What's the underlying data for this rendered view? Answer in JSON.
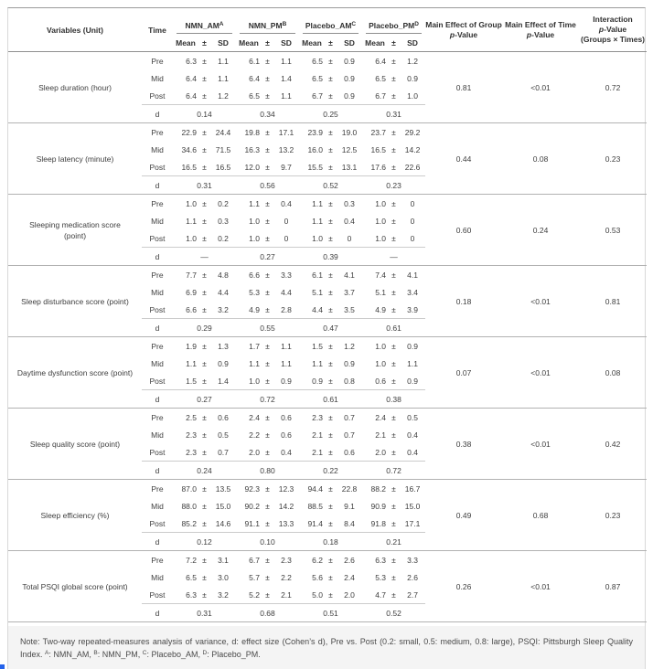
{
  "table": {
    "pm_sign": "±",
    "d_label": "d",
    "header": {
      "variables": "Variables (Unit)",
      "time": "Time",
      "groups": [
        {
          "label": "NMN_AM",
          "sup": "A"
        },
        {
          "label": "NMN_PM",
          "sup": "B"
        },
        {
          "label": "Placebo_AM",
          "sup": "C"
        },
        {
          "label": "Placebo_PM",
          "sup": "D"
        }
      ],
      "subcols": [
        "Mean",
        "±",
        "SD"
      ],
      "p_group_title": "Main Effect of Group",
      "p_time_title": "Main Effect of Time",
      "interaction_title": "Interaction",
      "interaction_sub": "(Groups × Times)",
      "p_italic": "p",
      "p_suffix": "-Value"
    },
    "blocks": [
      {
        "variable": "Sleep duration (hour)",
        "rows": [
          {
            "time": "Pre",
            "groups": [
              [
                "6.3",
                "1.1"
              ],
              [
                "6.1",
                "1.1"
              ],
              [
                "6.5",
                "0.9"
              ],
              [
                "6.4",
                "1.2"
              ]
            ]
          },
          {
            "time": "Mid",
            "groups": [
              [
                "6.4",
                "1.1"
              ],
              [
                "6.4",
                "1.4"
              ],
              [
                "6.5",
                "0.9"
              ],
              [
                "6.5",
                "0.9"
              ]
            ]
          },
          {
            "time": "Post",
            "groups": [
              [
                "6.4",
                "1.2"
              ],
              [
                "6.5",
                "1.1"
              ],
              [
                "6.7",
                "0.9"
              ],
              [
                "6.7",
                "1.0"
              ]
            ]
          }
        ],
        "d": [
          "0.14",
          "0.34",
          "0.25",
          "0.31"
        ],
        "p_group": "0.81",
        "p_time": "<0.01",
        "p_interaction": "0.72"
      },
      {
        "variable": "Sleep latency (minute)",
        "rows": [
          {
            "time": "Pre",
            "groups": [
              [
                "22.9",
                "24.4"
              ],
              [
                "19.8",
                "17.1"
              ],
              [
                "23.9",
                "19.0"
              ],
              [
                "23.7",
                "29.2"
              ]
            ]
          },
          {
            "time": "Mid",
            "groups": [
              [
                "34.6",
                "71.5"
              ],
              [
                "16.3",
                "13.2"
              ],
              [
                "16.0",
                "12.5"
              ],
              [
                "16.5",
                "14.2"
              ]
            ]
          },
          {
            "time": "Post",
            "groups": [
              [
                "16.5",
                "16.5"
              ],
              [
                "12.0",
                "9.7"
              ],
              [
                "15.5",
                "13.1"
              ],
              [
                "17.6",
                "22.6"
              ]
            ]
          }
        ],
        "d": [
          "0.31",
          "0.56",
          "0.52",
          "0.23"
        ],
        "p_group": "0.44",
        "p_time": "0.08",
        "p_interaction": "0.23"
      },
      {
        "variable": "Sleeping medication score\n(point)",
        "rows": [
          {
            "time": "Pre",
            "groups": [
              [
                "1.0",
                "0.2"
              ],
              [
                "1.1",
                "0.4"
              ],
              [
                "1.1",
                "0.3"
              ],
              [
                "1.0",
                "0"
              ]
            ]
          },
          {
            "time": "Mid",
            "groups": [
              [
                "1.1",
                "0.3"
              ],
              [
                "1.0",
                "0"
              ],
              [
                "1.1",
                "0.4"
              ],
              [
                "1.0",
                "0"
              ]
            ]
          },
          {
            "time": "Post",
            "groups": [
              [
                "1.0",
                "0.2"
              ],
              [
                "1.0",
                "0"
              ],
              [
                "1.0",
                "0"
              ],
              [
                "1.0",
                "0"
              ]
            ]
          }
        ],
        "d": [
          "—",
          "0.27",
          "0.39",
          "—"
        ],
        "p_group": "0.60",
        "p_time": "0.24",
        "p_interaction": "0.53"
      },
      {
        "variable": "Sleep disturbance score (point)",
        "rows": [
          {
            "time": "Pre",
            "groups": [
              [
                "7.7",
                "4.8"
              ],
              [
                "6.6",
                "3.3"
              ],
              [
                "6.1",
                "4.1"
              ],
              [
                "7.4",
                "4.1"
              ]
            ]
          },
          {
            "time": "Mid",
            "groups": [
              [
                "6.9",
                "4.4"
              ],
              [
                "5.3",
                "4.4"
              ],
              [
                "5.1",
                "3.7"
              ],
              [
                "5.1",
                "3.4"
              ]
            ]
          },
          {
            "time": "Post",
            "groups": [
              [
                "6.6",
                "3.2"
              ],
              [
                "4.9",
                "2.8"
              ],
              [
                "4.4",
                "3.5"
              ],
              [
                "4.9",
                "3.9"
              ]
            ]
          }
        ],
        "d": [
          "0.29",
          "0.55",
          "0.47",
          "0.61"
        ],
        "p_group": "0.18",
        "p_time": "<0.01",
        "p_interaction": "0.81"
      },
      {
        "variable": "Daytime dysfunction score (point)",
        "rows": [
          {
            "time": "Pre",
            "groups": [
              [
                "1.9",
                "1.3"
              ],
              [
                "1.7",
                "1.1"
              ],
              [
                "1.5",
                "1.2"
              ],
              [
                "1.0",
                "0.9"
              ]
            ]
          },
          {
            "time": "Mid",
            "groups": [
              [
                "1.1",
                "0.9"
              ],
              [
                "1.1",
                "1.1"
              ],
              [
                "1.1",
                "0.9"
              ],
              [
                "1.0",
                "1.1"
              ]
            ]
          },
          {
            "time": "Post",
            "groups": [
              [
                "1.5",
                "1.4"
              ],
              [
                "1.0",
                "0.9"
              ],
              [
                "0.9",
                "0.8"
              ],
              [
                "0.6",
                "0.9"
              ]
            ]
          }
        ],
        "d": [
          "0.27",
          "0.72",
          "0.61",
          "0.38"
        ],
        "p_group": "0.07",
        "p_time": "<0.01",
        "p_interaction": "0.08"
      },
      {
        "variable": "Sleep quality score (point)",
        "rows": [
          {
            "time": "Pre",
            "groups": [
              [
                "2.5",
                "0.6"
              ],
              [
                "2.4",
                "0.6"
              ],
              [
                "2.3",
                "0.7"
              ],
              [
                "2.4",
                "0.5"
              ]
            ]
          },
          {
            "time": "Mid",
            "groups": [
              [
                "2.3",
                "0.5"
              ],
              [
                "2.2",
                "0.6"
              ],
              [
                "2.1",
                "0.7"
              ],
              [
                "2.1",
                "0.4"
              ]
            ]
          },
          {
            "time": "Post",
            "groups": [
              [
                "2.3",
                "0.7"
              ],
              [
                "2.0",
                "0.4"
              ],
              [
                "2.1",
                "0.6"
              ],
              [
                "2.0",
                "0.4"
              ]
            ]
          }
        ],
        "d": [
          "0.24",
          "0.80",
          "0.22",
          "0.72"
        ],
        "p_group": "0.38",
        "p_time": "<0.01",
        "p_interaction": "0.42"
      },
      {
        "variable": "Sleep efficiency (%)",
        "rows": [
          {
            "time": "Pre",
            "groups": [
              [
                "87.0",
                "13.5"
              ],
              [
                "92.3",
                "12.3"
              ],
              [
                "94.4",
                "22.8"
              ],
              [
                "88.2",
                "16.7"
              ]
            ]
          },
          {
            "time": "Mid",
            "groups": [
              [
                "88.0",
                "15.0"
              ],
              [
                "90.2",
                "14.2"
              ],
              [
                "88.5",
                "9.1"
              ],
              [
                "90.9",
                "15.0"
              ]
            ]
          },
          {
            "time": "Post",
            "groups": [
              [
                "85.2",
                "14.6"
              ],
              [
                "91.1",
                "13.3"
              ],
              [
                "91.4",
                "8.4"
              ],
              [
                "91.8",
                "17.1"
              ]
            ]
          }
        ],
        "d": [
          "0.12",
          "0.10",
          "0.18",
          "0.21"
        ],
        "p_group": "0.49",
        "p_time": "0.68",
        "p_interaction": "0.23"
      },
      {
        "variable": "Total PSQI global score (point)",
        "rows": [
          {
            "time": "Pre",
            "groups": [
              [
                "7.2",
                "3.1"
              ],
              [
                "6.7",
                "2.3"
              ],
              [
                "6.2",
                "2.6"
              ],
              [
                "6.3",
                "3.3"
              ]
            ]
          },
          {
            "time": "Mid",
            "groups": [
              [
                "6.5",
                "3.0"
              ],
              [
                "5.7",
                "2.2"
              ],
              [
                "5.6",
                "2.4"
              ],
              [
                "5.3",
                "2.6"
              ]
            ]
          },
          {
            "time": "Post",
            "groups": [
              [
                "6.3",
                "3.2"
              ],
              [
                "5.2",
                "2.1"
              ],
              [
                "5.0",
                "2.0"
              ],
              [
                "4.7",
                "2.7"
              ]
            ]
          }
        ],
        "d": [
          "0.31",
          "0.68",
          "0.51",
          "0.52"
        ],
        "p_group": "0.26",
        "p_time": "<0.01",
        "p_interaction": "0.87"
      }
    ]
  },
  "note": {
    "main": "Note: Two-way repeated-measures analysis of variance, d: effect size (Cohen’s d), Pre vs. Post (0.2: small, 0.5: medium, 0.8: large), PSQI: Pittsburgh Sleep Quality Index.",
    "refs": [
      {
        "sup": "A",
        "text": ": NMN_AM, "
      },
      {
        "sup": "B",
        "text": ": NMN_PM, "
      },
      {
        "sup": "C",
        "text": ": Placebo_AM, "
      },
      {
        "sup": "D",
        "text": ": Placebo_PM."
      }
    ]
  },
  "colors": {
    "note_background": "#f4f4f4",
    "bottom_rule": "#1f1f1f",
    "separator_line": "#b2b2b2",
    "corner_marker_blue": "#2563eb"
  }
}
